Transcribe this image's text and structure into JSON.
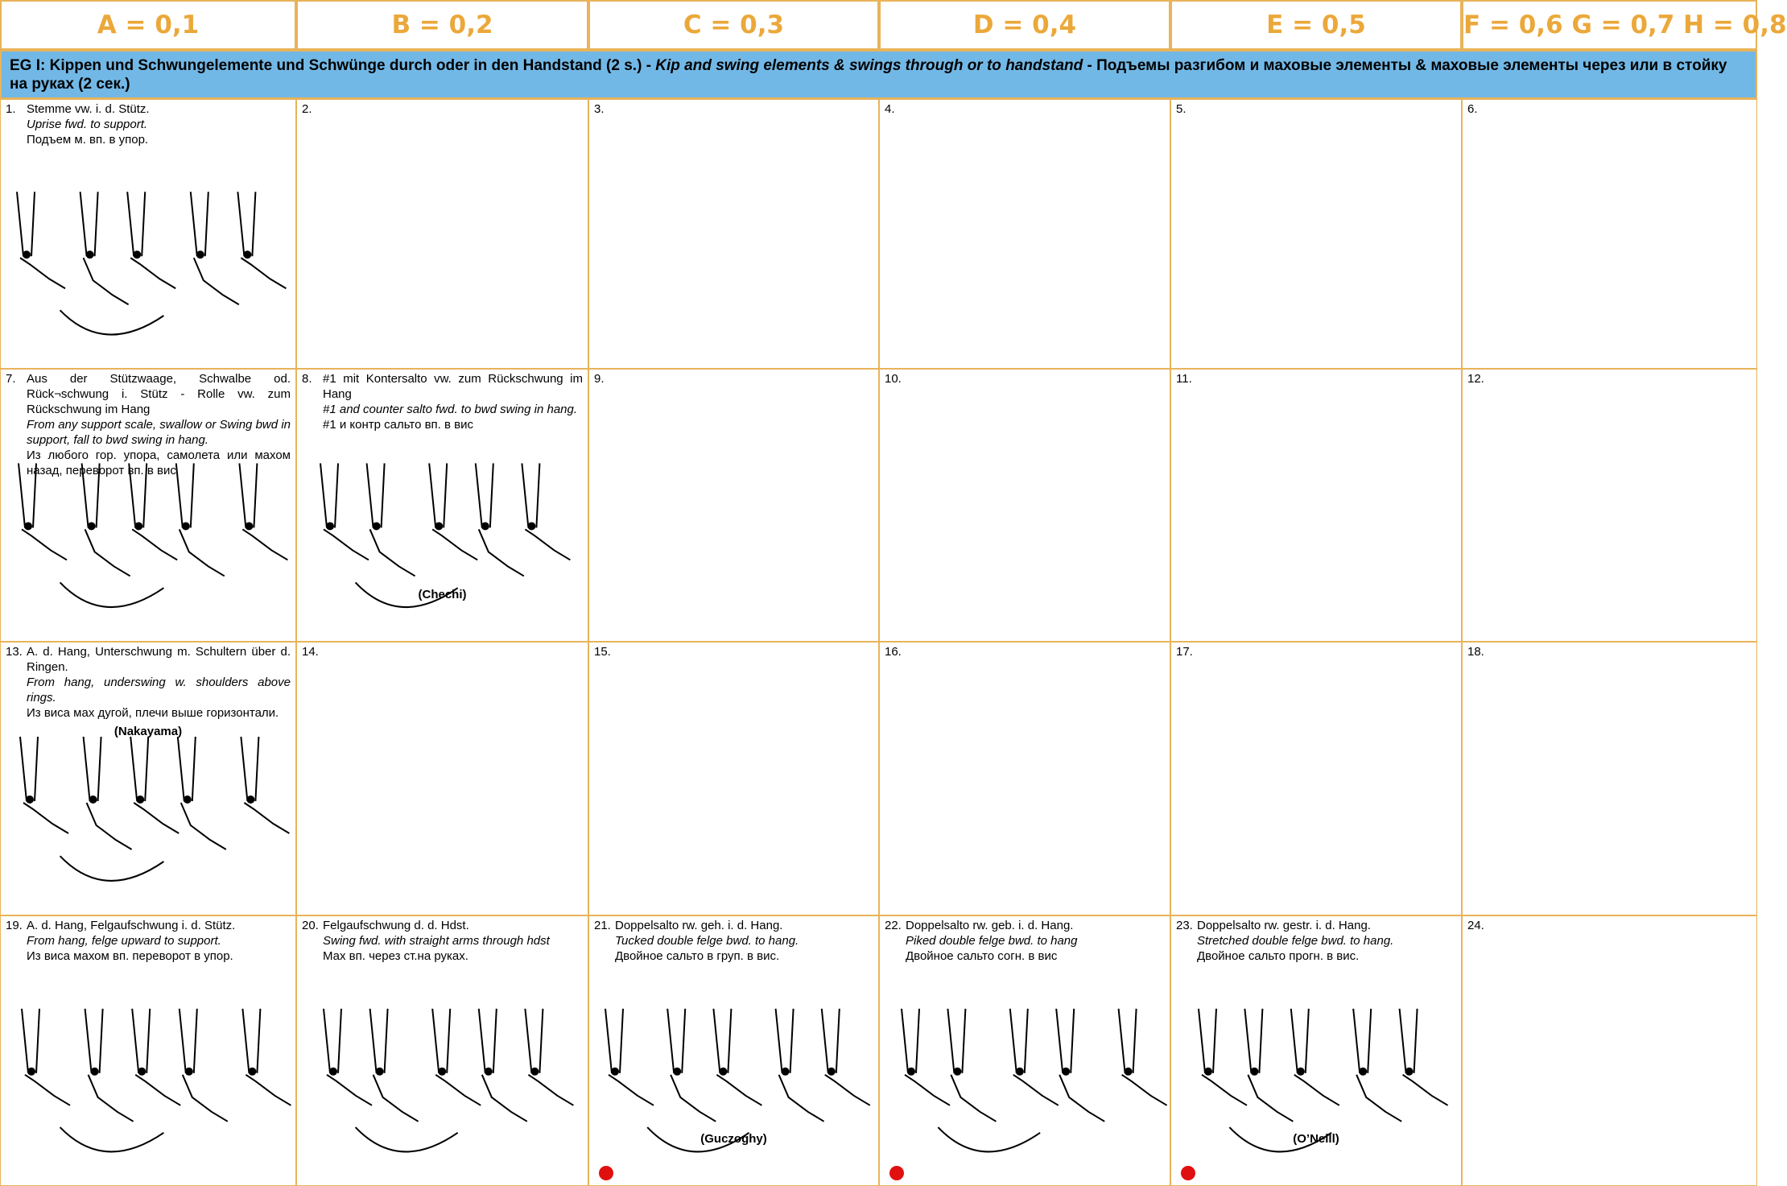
{
  "header": {
    "columns": [
      "A = 0,1",
      "B = 0,2",
      "C = 0,3",
      "D = 0,4",
      "E = 0,5",
      "F = 0,6 G = 0,7 H = 0,8"
    ]
  },
  "section": {
    "code": "EG I:",
    "title_de": "Kippen und Schwungelemente und Schwünge durch oder in den Handstand (2 s.) -",
    "title_en": "Kip and swing elements & swings through or to handstand",
    "title_ru": "- Подъемы разгибом и маховые элементы & маховые элементы через или в стойку на руках (2 сек.)"
  },
  "table": {
    "rows": [
      [
        {
          "number": "1.",
          "de": "Stemme vw. i. d. Stütz.",
          "en": "Uprise fwd. to support.",
          "ru": "Подъем м. вп. в упор."
        },
        {
          "number": "2."
        },
        {
          "number": "3."
        },
        {
          "number": "4."
        },
        {
          "number": "5."
        },
        {
          "number": "6."
        }
      ],
      [
        {
          "number": "7.",
          "de": "Aus der Stützwaage, Schwalbe od. Rück¬schwung i. Stütz - Rolle vw. zum Rückschwung im Hang",
          "en": "From any support scale, swallow or Swing bwd in support, fall to bwd swing in hang.",
          "ru": "Из любого гор. упора, самолета или махом назад, переворот вп. в вис"
        },
        {
          "number": "8.",
          "de": "#1 mit Kontersalto vw. zum Rückschwung im Hang",
          "en": "#1 and counter salto fwd. to bwd swing in hang.",
          "ru": "#1 и контр сальто вп. в вис",
          "name": "(Chechi)"
        },
        {
          "number": "9."
        },
        {
          "number": "10."
        },
        {
          "number": "11."
        },
        {
          "number": "12."
        }
      ],
      [
        {
          "number": "13.",
          "de": "A. d. Hang, Unterschwung m. Schultern über d. Ringen.",
          "en": "From hang, underswing w. shoulders above rings.",
          "ru": "Из виса мах дугой, плечи выше горизонтали.",
          "name": "(Nakayama)"
        },
        {
          "number": "14."
        },
        {
          "number": "15."
        },
        {
          "number": "16."
        },
        {
          "number": "17."
        },
        {
          "number": "18."
        }
      ],
      [
        {
          "number": "19.",
          "de": "A. d. Hang, Felgaufschwung i. d. Stütz.",
          "en": "From hang, felge upward to support.",
          "ru": "Из виса махом вп. переворот в упор."
        },
        {
          "number": "20.",
          "de": "Felgaufschwung d. d. Hdst.",
          "en": "Swing fwd. with straight arms through hdst",
          "ru": "Мах вп. через ст.на руках."
        },
        {
          "number": "21.",
          "de": "Doppelsalto rw. geh. i. d. Hang.",
          "en": "Tucked double felge bwd. to hang.",
          "ru": "Двойное сальто в груп. в вис.",
          "name": "(Guczoghy)"
        },
        {
          "number": "22.",
          "de": "Doppelsalto rw. geb. i. d. Hang.",
          "en": "Piked double felge bwd. to hang",
          "ru": "Двойное сальто согн. в вис"
        },
        {
          "number": "23.",
          "de": "Doppelsalto rw. gestr. i. d. Hang.",
          "en": "Stretched double felge bwd. to hang.",
          "ru": "Двойное сальто прогн. в вис.",
          "name": "(O’Neill)"
        },
        {
          "number": "24."
        }
      ]
    ]
  }
}
